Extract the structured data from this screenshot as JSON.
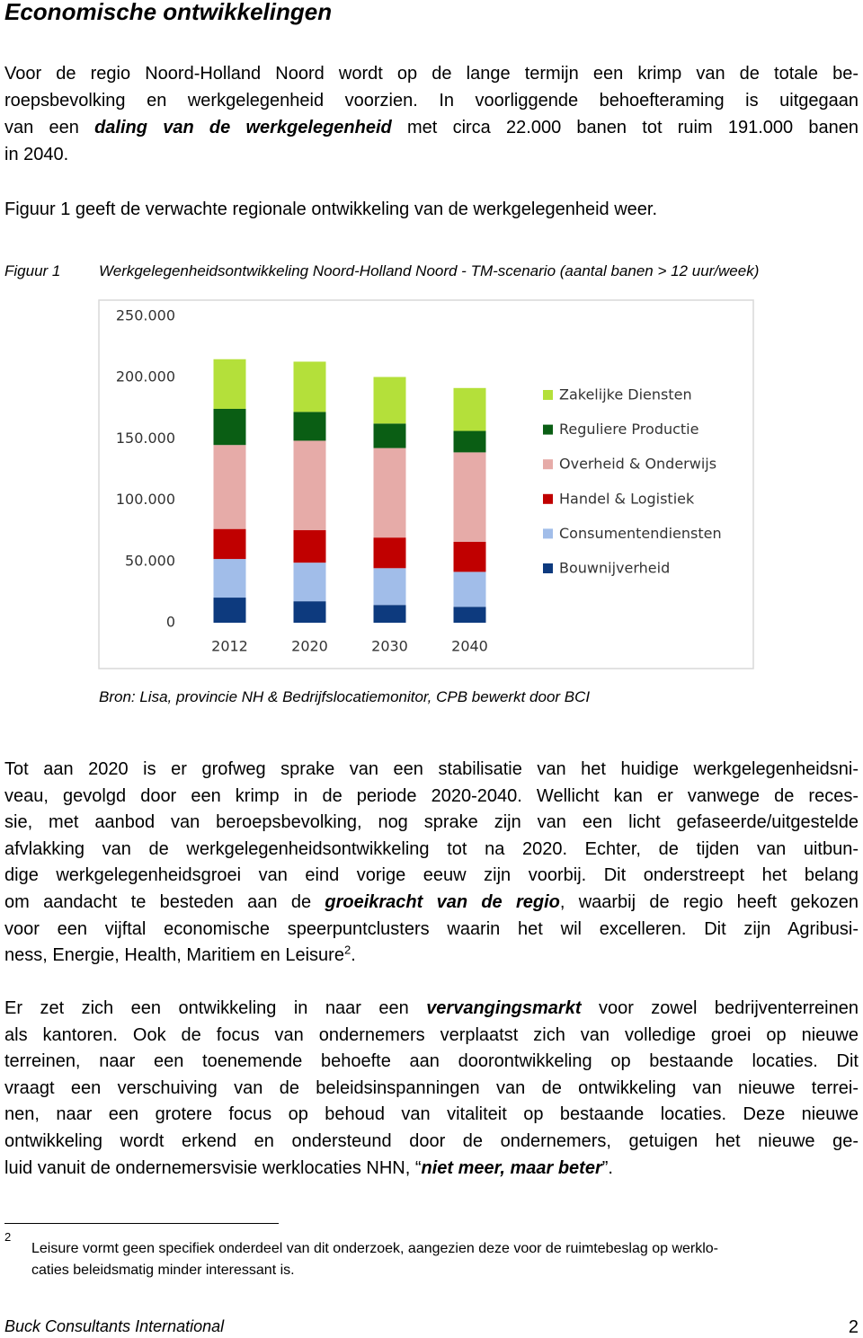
{
  "header": {
    "title": "Economische ontwikkelingen"
  },
  "body": {
    "paragraph_1": [
      "Voor de regio Noord-Holland Noord wordt op de lange termijn een krimp van de totale be-",
      "roepsbevolking en werkgelegenheid voorzien. In voorliggende behoefteraming is uitgegaan",
      [
        "van een ",
        "daling van de werkgelegenheid",
        " met circa 22.000 banen tot ruim 191.000 banen"
      ],
      "in 2040."
    ],
    "paragraph_2": "Figuur 1 geeft de verwachte regionale ontwikkeling van de werkgelegenheid weer.",
    "paragraph_3": [
      "Tot aan 2020 is er grofweg sprake van een stabilisatie van het huidige werkgelegenheidsni-",
      "veau, gevolgd door een krimp in de periode 2020-2040. Wellicht kan er vanwege de reces-",
      "sie, met aanbod van beroepsbevolking, nog sprake zijn van een licht gefaseerde/uitgestelde",
      "afvlakking van de werkgelegenheidsontwikkeling tot na 2020. Echter, de tijden van uitbun-",
      "dige werkgelegenheidsgroei van eind vorige eeuw zijn voorbij. Dit onderstreept het belang",
      [
        "om aandacht te besteden aan de ",
        "groeikracht van de regio",
        ", waarbij de regio heeft gekozen"
      ],
      "voor een vijftal economische speerpuntclusters waarin het wil excelleren. Dit zijn Agribusi-",
      [
        "ness, Energie, Health, Maritiem en Leisure",
        "2",
        "."
      ]
    ],
    "paragraph_4": [
      [
        "Er zet zich een ontwikkeling in naar een ",
        "vervangingsmarkt",
        " voor zowel bedrijventerreinen"
      ],
      "als kantoren. Ook de focus van ondernemers verplaatst zich van volledige groei op nieuwe",
      "terreinen, naar een toenemende behoefte aan doorontwikkeling op bestaande locaties. Dit",
      "vraagt een verschuiving van de beleidsinspanningen van de ontwikkeling van nieuwe terrei-",
      "nen, naar een grotere focus op behoud van vitaliteit op bestaande locaties. Deze nieuwe",
      "ontwikkeling wordt erkend en ondersteund door de ondernemers, getuigen het nieuwe ge-",
      [
        "luid vanuit de ondernemersvisie werklocaties NHN, “",
        "niet meer, maar beter",
        "”."
      ]
    ]
  },
  "figure": {
    "label": "Figuur 1",
    "caption": "Werkgelegenheidsontwikkeling Noord-Holland Noord - TM-scenario (aantal banen > 12 uur/week)",
    "source": "Bron: Lisa, provincie NH & Bedrijfslocatiemonitor, CPB bewerkt door BCI"
  },
  "chart_data": {
    "type": "stacked_bar",
    "categories": [
      "2012",
      "2020",
      "2030",
      "2040"
    ],
    "series": [
      {
        "name": "Bouwnijverheid",
        "color": "#0d3a7e",
        "values": [
          20500,
          17500,
          14500,
          13000
        ]
      },
      {
        "name": "Consumentendiensten",
        "color": "#a1bde9",
        "values": [
          31500,
          31500,
          30000,
          28500
        ]
      },
      {
        "name": "Handel & Logistiek",
        "color": "#c00000",
        "values": [
          24500,
          26500,
          25000,
          24500
        ]
      },
      {
        "name": "Overheid & Onderwijs",
        "color": "#e6aba8",
        "values": [
          68500,
          73000,
          73000,
          73000
        ]
      },
      {
        "name": "Reguliere Productie",
        "color": "#0a5e14",
        "values": [
          29500,
          23500,
          20000,
          17500
        ]
      },
      {
        "name": "Zakelijke Diensten",
        "color": "#b4e03a",
        "values": [
          40500,
          41000,
          38000,
          35000
        ]
      }
    ],
    "ylim": [
      0,
      250000
    ],
    "yticks": [
      0,
      {
        "value": 50000,
        "label": "50.000"
      },
      {
        "value": 100000,
        "label": "100.000"
      },
      {
        "value": 150000,
        "label": "150.000"
      },
      {
        "value": 200000,
        "label": "200.000"
      },
      {
        "value": 250000,
        "label": "250.000"
      }
    ],
    "grid": false,
    "legend": "right"
  },
  "footnote": {
    "mark": "2",
    "lines": [
      "Leisure vormt geen specifiek onderdeel van dit onderzoek, aangezien deze voor de ruimtebeslag op werklo-",
      "caties beleidsmatig minder interessant is."
    ]
  },
  "footer": {
    "left": "Buck Consultants International",
    "page_number": "2"
  }
}
